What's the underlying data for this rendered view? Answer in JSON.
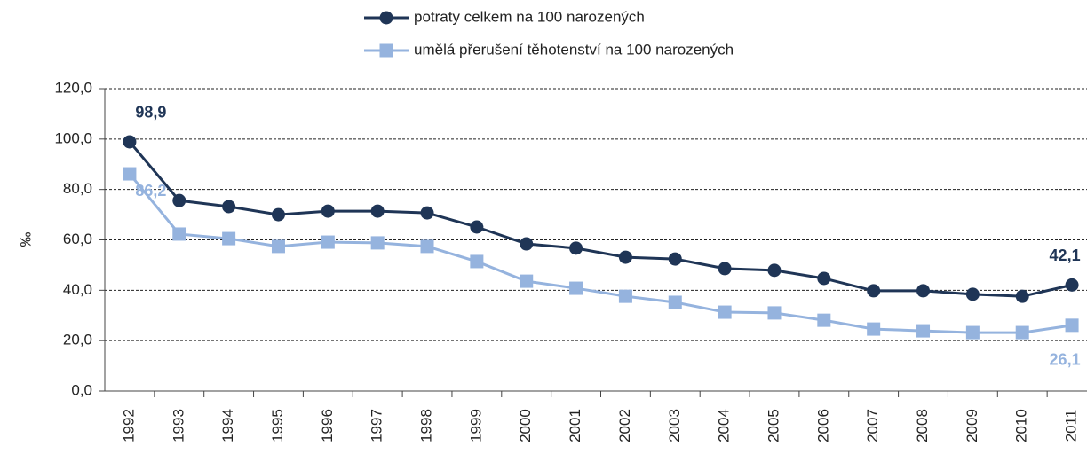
{
  "chart_data": {
    "type": "line",
    "y_label": "‰",
    "categories": [
      "1992",
      "1993",
      "1994",
      "1995",
      "1996",
      "1997",
      "1998",
      "1999",
      "2000",
      "2001",
      "2002",
      "2003",
      "2004",
      "2005",
      "2006",
      "2007",
      "2008",
      "2009",
      "2010",
      "2011"
    ],
    "series": [
      {
        "name": "potraty celkem na 100 narozených",
        "color": "#1f3556",
        "marker": "circle",
        "values": [
          98.9,
          75.6,
          73.2,
          70.0,
          71.4,
          71.4,
          70.7,
          65.1,
          58.4,
          56.7,
          53.1,
          52.4,
          48.6,
          47.9,
          44.7,
          39.8,
          39.8,
          38.4,
          37.6,
          42.1
        ],
        "value_labels": [
          "98,9",
          null,
          null,
          null,
          null,
          null,
          null,
          null,
          null,
          null,
          null,
          null,
          null,
          null,
          null,
          null,
          null,
          null,
          null,
          "42,1"
        ]
      },
      {
        "name": "umělá přerušení těhotenství na 100 narozených",
        "color": "#95b3de",
        "marker": "square",
        "values": [
          86.2,
          62.3,
          60.5,
          57.4,
          59.1,
          58.8,
          57.4,
          51.4,
          43.6,
          40.8,
          37.6,
          35.2,
          31.3,
          31.0,
          28.1,
          24.6,
          23.9,
          23.2,
          23.2,
          26.1
        ],
        "value_labels": [
          "86,2",
          null,
          null,
          null,
          null,
          null,
          null,
          null,
          null,
          null,
          null,
          null,
          null,
          null,
          null,
          null,
          null,
          null,
          null,
          "26,1"
        ]
      }
    ],
    "ylim": [
      0,
      120
    ],
    "yticks": [
      {
        "value": 0,
        "label": "0,0"
      },
      {
        "value": 20,
        "label": "20,0"
      },
      {
        "value": 40,
        "label": "40,0"
      },
      {
        "value": 60,
        "label": "60,0"
      },
      {
        "value": 80,
        "label": "80,0"
      },
      {
        "value": 100,
        "label": "100,0"
      },
      {
        "value": 120,
        "label": "120,0"
      }
    ],
    "grid": true
  }
}
